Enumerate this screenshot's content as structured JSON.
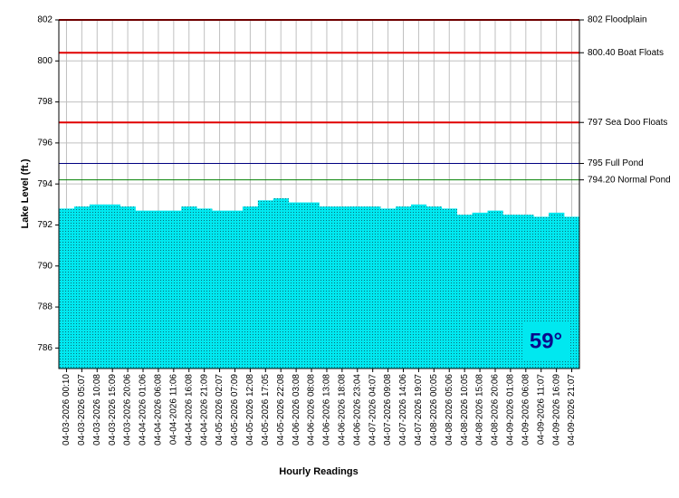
{
  "chart_data": {
    "type": "bar",
    "ylabel": "Lake Level (ft.)",
    "xlabel": "Hourly Readings",
    "badge": "59°",
    "color": "#00e8f0",
    "grid": true,
    "ylim": [
      785,
      802
    ],
    "yticks": [
      786,
      788,
      790,
      792,
      794,
      796,
      798,
      800,
      802
    ],
    "categories": [
      "04-03-2026 00:10",
      "04-03-2026 05:07",
      "04-03-2026 10:08",
      "04-03-2026 15:09",
      "04-03-2026 20:06",
      "04-04-2026 01:06",
      "04-04-2026 06:08",
      "04-04-2026 11:06",
      "04-04-2026 16:08",
      "04-04-2026 21:09",
      "04-05-2026 02:07",
      "04-05-2026 07:09",
      "04-05-2026 12:08",
      "04-05-2026 17:05",
      "04-05-2026 22:08",
      "04-06-2026 03:08",
      "04-06-2026 08:08",
      "04-06-2026 13:08",
      "04-06-2026 18:08",
      "04-06-2026 23:04",
      "04-07-2026 04:07",
      "04-07-2026 09:08",
      "04-07-2026 14:06",
      "04-07-2026 19:07",
      "04-08-2026 00:05",
      "04-08-2026 05:06",
      "04-08-2026 10:05",
      "04-08-2026 15:08",
      "04-08-2026 20:06",
      "04-09-2026 01:08",
      "04-09-2026 06:08",
      "04-09-2026 11:07",
      "04-09-2026 16:09",
      "04-09-2026 21:07"
    ],
    "values": [
      792.8,
      792.9,
      793.0,
      793.0,
      792.9,
      792.7,
      792.7,
      792.7,
      792.9,
      792.8,
      792.7,
      792.7,
      792.9,
      793.2,
      793.3,
      793.1,
      793.1,
      792.9,
      792.9,
      792.9,
      792.9,
      792.8,
      792.9,
      793.0,
      792.9,
      792.8,
      792.5,
      792.6,
      792.7,
      792.5,
      792.5,
      792.4,
      792.6,
      792.4
    ],
    "reference_lines": [
      {
        "value": 802,
        "label": "802 Floodplain",
        "color": "#e00000"
      },
      {
        "value": 800.4,
        "label": "800.40 Boat Floats",
        "color": "#e00000"
      },
      {
        "value": 797,
        "label": "797 Sea Doo Floats",
        "color": "#e00000"
      },
      {
        "value": 795,
        "label": "795 Full Pond",
        "color": "#000080"
      },
      {
        "value": 794.2,
        "label": "794.20 Normal Pond",
        "color": "#008000"
      }
    ]
  }
}
